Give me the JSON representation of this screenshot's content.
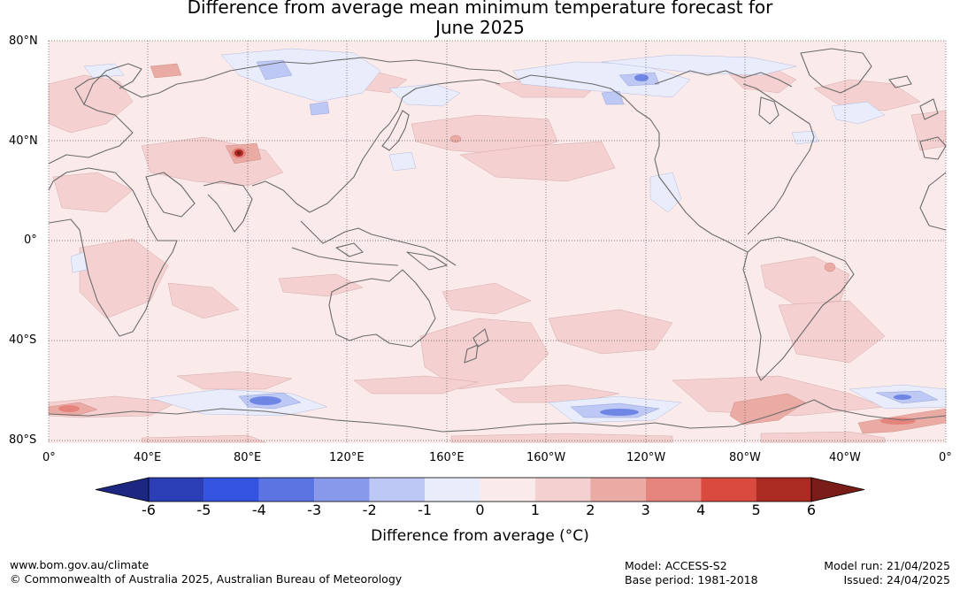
{
  "title_line1": "Difference from average mean minimum temperature forecast for",
  "title_line2": "June 2025",
  "lat_labels": [
    "80°N",
    "40°N",
    "0°",
    "40°S",
    "80°S"
  ],
  "lon_labels": [
    "0°",
    "40°E",
    "80°E",
    "120°E",
    "160°E",
    "160°W",
    "120°W",
    "80°W",
    "40°W",
    "0°"
  ],
  "colorbar": {
    "ticks": [
      "-6",
      "-5",
      "-4",
      "-3",
      "-2",
      "-1",
      "0",
      "1",
      "2",
      "3",
      "4",
      "5",
      "6"
    ],
    "colors": [
      "#1b2780",
      "#2b3eb5",
      "#3453e0",
      "#5b74e2",
      "#8898ea",
      "#bec8f5",
      "#e8ecfb",
      "#fbeaea",
      "#f4d0d0",
      "#eaaba4",
      "#e5847c",
      "#d94b3f",
      "#ab2a22",
      "#7a1c17"
    ],
    "label": "Difference from average ($^\\circ$C)",
    "label_display": "Difference from average (°C)"
  },
  "map": {
    "base_color": "#fbeaea",
    "coast_color": "#6b6b6b",
    "grid_color": "#555555"
  },
  "footer": {
    "website": "www.bom.gov.au/climate",
    "copyright": "© Commonwealth of Australia 2025, Australian Bureau of Meteorology",
    "model": "Model: ACCESS-S2",
    "base_period": "Base period: 1981-2018",
    "model_run": "Model run: 21/04/2025",
    "issued": "Issued: 24/04/2025"
  }
}
